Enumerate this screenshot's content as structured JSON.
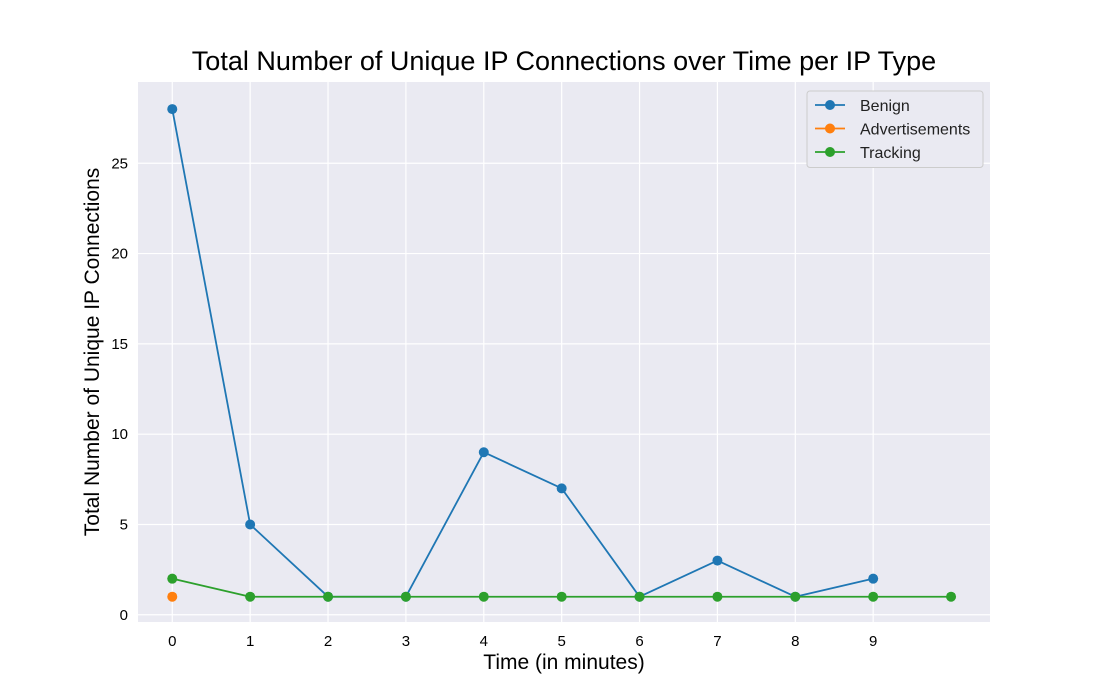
{
  "chart_data": {
    "type": "line",
    "title": "Total Number of Unique IP Connections over Time per IP Type",
    "xlabel": "Time (in minutes)",
    "ylabel": "Total Number of Unique IP Connections",
    "xlim": [
      -0.44,
      10.5
    ],
    "ylim": [
      -0.4,
      29.5
    ],
    "x_ticks": [
      "0",
      "1",
      "2",
      "3",
      "4",
      "5",
      "6",
      "7",
      "8",
      "9"
    ],
    "y_ticks": [
      "0",
      "5",
      "10",
      "15",
      "20",
      "25"
    ],
    "grid": true,
    "legend_position": "top-right",
    "background_color": "#eaeaf2",
    "series": [
      {
        "name": "Benign",
        "color": "#1f77b4",
        "x": [
          0,
          1,
          2,
          3,
          4,
          5,
          6,
          7,
          8,
          9
        ],
        "values": [
          28,
          5,
          1,
          1,
          9,
          7,
          1,
          3,
          1,
          2
        ]
      },
      {
        "name": "Advertisements",
        "color": "#ff7f0e",
        "x": [
          0
        ],
        "values": [
          1
        ]
      },
      {
        "name": "Tracking",
        "color": "#2ca02c",
        "x": [
          0,
          1,
          2,
          3,
          4,
          5,
          6,
          7,
          8,
          9,
          10
        ],
        "values": [
          2,
          1,
          1,
          1,
          1,
          1,
          1,
          1,
          1,
          1,
          1
        ]
      }
    ]
  }
}
